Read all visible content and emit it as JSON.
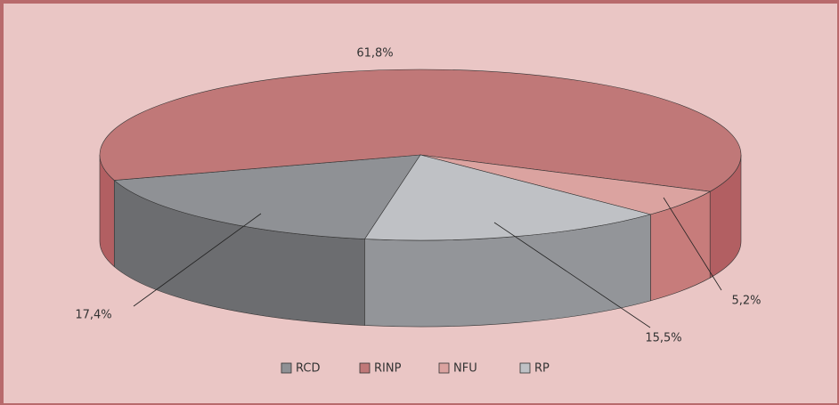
{
  "chart_data": {
    "type": "pie3d",
    "categories": [
      "RCD",
      "RINP",
      "NFU",
      "RP"
    ],
    "values": [
      17.4,
      61.8,
      5.2,
      15.5
    ],
    "value_labels": [
      "17,4%",
      "61,8%",
      "5,2%",
      "15,5%"
    ],
    "colors": [
      "#8f9195",
      "#c07878",
      "#dba3a0",
      "#bfc1c5"
    ],
    "side_colors": [
      "#6c6d70",
      "#b25f62",
      "#c77c7b",
      "#939599"
    ],
    "legend": "bottom"
  }
}
